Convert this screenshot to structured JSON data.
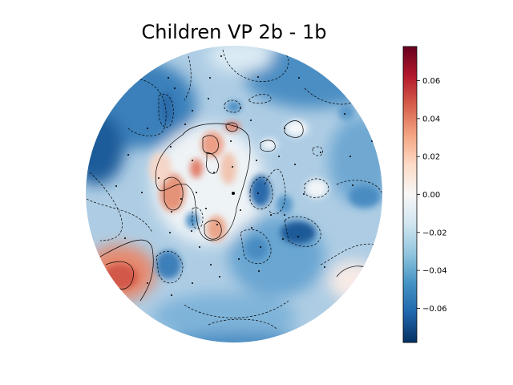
{
  "chart_data": {
    "type": "heatmap",
    "subtype": "eeg-topomap",
    "title": "Children VP 2b - 1b",
    "colormap": "RdBu_r",
    "colorbar": {
      "vmin": -0.078,
      "vmax": 0.078,
      "ticks": [
        -0.06,
        -0.04,
        -0.02,
        0.0,
        0.02,
        0.04,
        0.06
      ],
      "tick_labels": [
        "−0.06",
        "−0.04",
        "−0.02",
        "0.00",
        "0.02",
        "0.04",
        "0.06"
      ],
      "placement": "right"
    },
    "contours": true,
    "sensors_shown": true,
    "field_regions": [
      {
        "label": "left-lower-positive",
        "value": 0.055
      },
      {
        "label": "central-positive-cluster",
        "value": 0.035
      },
      {
        "label": "left-upper-negative",
        "value": -0.065
      },
      {
        "label": "right-upper-negative",
        "value": -0.05
      },
      {
        "label": "right-central-negative",
        "value": -0.06
      },
      {
        "label": "right-lower-positive",
        "value": 0.01
      }
    ]
  }
}
